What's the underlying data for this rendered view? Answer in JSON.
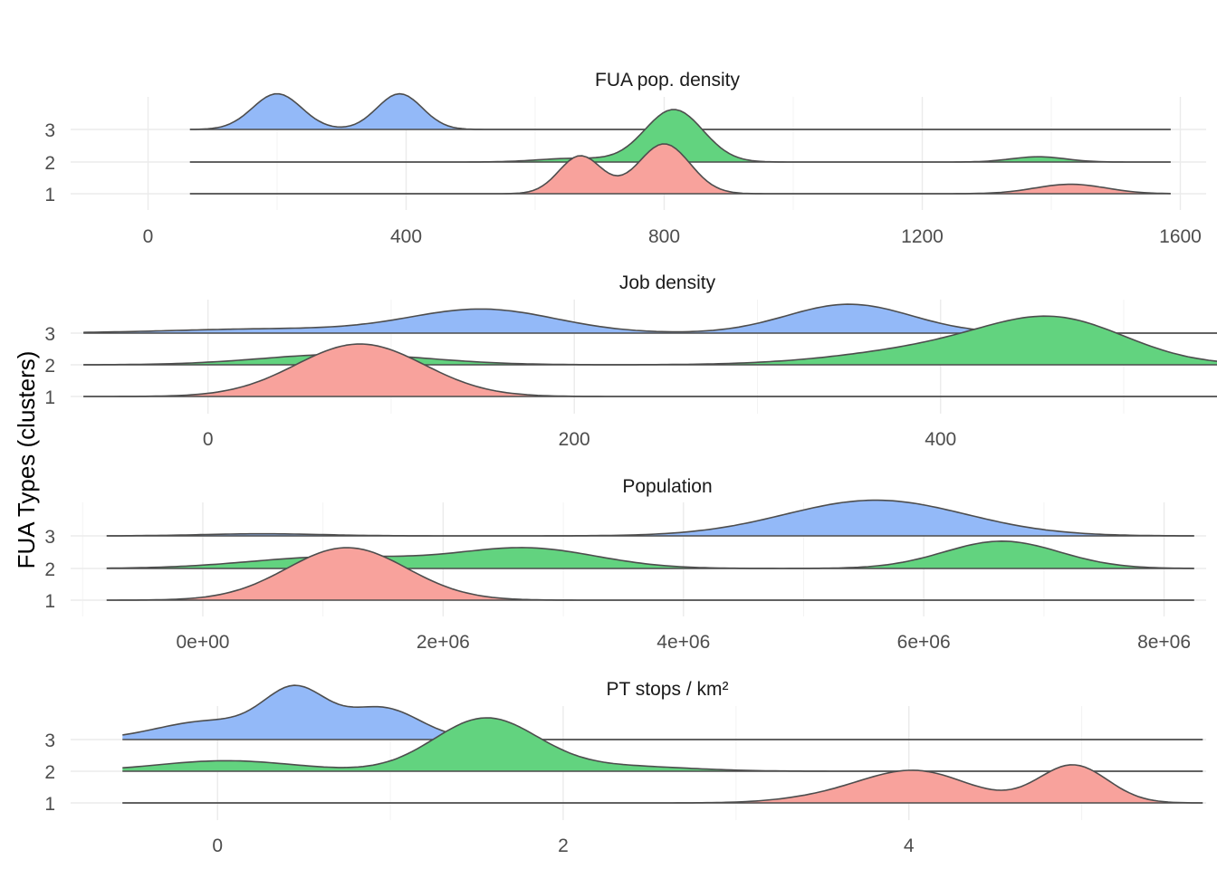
{
  "figure": {
    "y_label": "FUA Types (clusters)"
  },
  "chart_data": [
    {
      "type": "ridgeline",
      "title": "FUA pop. density",
      "xlim": [
        -120,
        1640
      ],
      "x_range": [
        65,
        1585
      ],
      "x_ticks": [
        0,
        400,
        800,
        1200,
        1600
      ],
      "x_tick_labels": [
        "0",
        "400",
        "800",
        "1200",
        "1600"
      ],
      "categories": [
        "1",
        "2",
        "3"
      ],
      "grid": true,
      "series": [
        {
          "cluster": "1",
          "color": "#F8766D",
          "fill": "#F8A29C",
          "bumps": [
            [
              670,
              33,
              0.72
            ],
            [
              800,
              40,
              0.95
            ],
            [
              1430,
              55,
              0.18
            ]
          ]
        },
        {
          "cluster": "2",
          "color": "#00BA38",
          "fill": "#62D37F",
          "bumps": [
            [
              815,
              45,
              1.0
            ],
            [
              1380,
              42,
              0.1
            ],
            [
              660,
              55,
              0.07
            ]
          ]
        },
        {
          "cluster": "3",
          "color": "#619CFF",
          "fill": "#93B9F8",
          "bumps": [
            [
              200,
              38,
              0.68
            ],
            [
              390,
              35,
              0.68
            ]
          ]
        }
      ]
    },
    {
      "type": "ridgeline",
      "title": "Job density",
      "xlim": [
        -75,
        545
      ],
      "x_range": [
        -68,
        552
      ],
      "x_ticks": [
        0,
        200,
        400
      ],
      "x_tick_labels": [
        "0",
        "200",
        "400"
      ],
      "categories": [
        "1",
        "2",
        "3"
      ],
      "grid": true,
      "series": [
        {
          "cluster": "1",
          "color": "#F8766D",
          "fill": "#F8A29C",
          "bumps": [
            [
              83,
              35,
              1.0
            ]
          ]
        },
        {
          "cluster": "2",
          "color": "#00BA38",
          "fill": "#62D37F",
          "bumps": [
            [
              75,
              45,
              0.2
            ],
            [
              465,
              38,
              0.7
            ],
            [
              410,
              55,
              0.35
            ]
          ]
        },
        {
          "cluster": "3",
          "color": "#619CFF",
          "fill": "#93B9F8",
          "bumps": [
            [
              150,
              40,
              0.45
            ],
            [
              350,
              34,
              0.55
            ],
            [
              35,
              55,
              0.08
            ]
          ]
        }
      ]
    },
    {
      "type": "ridgeline",
      "title": "Population",
      "xlim": [
        -1100000,
        8350000
      ],
      "x_range": [
        -800000,
        8250000
      ],
      "x_ticks": [
        0,
        2000000,
        4000000,
        6000000,
        8000000
      ],
      "x_tick_labels": [
        "0e+00",
        "2e+06",
        "4e+06",
        "6e+06",
        "8e+06"
      ],
      "categories": [
        "1",
        "2",
        "3"
      ],
      "grid": true,
      "series": [
        {
          "cluster": "1",
          "color": "#F8766D",
          "fill": "#F8A29C",
          "bumps": [
            [
              1200000,
              500000,
              1.0
            ]
          ]
        },
        {
          "cluster": "2",
          "color": "#00BA38",
          "fill": "#62D37F",
          "bumps": [
            [
              1100000,
              700000,
              0.22
            ],
            [
              2700000,
              580000,
              0.38
            ],
            [
              6650000,
              480000,
              0.52
            ]
          ]
        },
        {
          "cluster": "3",
          "color": "#619CFF",
          "fill": "#93B9F8",
          "bumps": [
            [
              5600000,
              750000,
              0.68
            ],
            [
              500000,
              500000,
              0.04
            ]
          ]
        }
      ]
    },
    {
      "type": "ridgeline",
      "title": "PT stops / km²",
      "xlim": [
        -0.85,
        5.72
      ],
      "x_range": [
        -0.55,
        5.7
      ],
      "x_ticks": [
        0,
        2,
        4
      ],
      "x_tick_labels": [
        "0",
        "2",
        "4"
      ],
      "categories": [
        "1",
        "2",
        "3"
      ],
      "grid": true,
      "series": [
        {
          "cluster": "1",
          "color": "#F8766D",
          "fill": "#F8A29C",
          "bumps": [
            [
              4.05,
              0.3,
              0.58
            ],
            [
              4.95,
              0.2,
              0.72
            ],
            [
              3.6,
              0.3,
              0.12
            ]
          ]
        },
        {
          "cluster": "2",
          "color": "#00BA38",
          "fill": "#62D37F",
          "bumps": [
            [
              1.55,
              0.3,
              1.0
            ],
            [
              0.05,
              0.4,
              0.2
            ],
            [
              2.3,
              0.4,
              0.1
            ]
          ]
        },
        {
          "cluster": "3",
          "color": "#619CFF",
          "fill": "#93B9F8",
          "bumps": [
            [
              0.45,
              0.18,
              0.9
            ],
            [
              0.95,
              0.22,
              0.6
            ],
            [
              -0.05,
              0.3,
              0.35
            ]
          ]
        }
      ]
    }
  ]
}
